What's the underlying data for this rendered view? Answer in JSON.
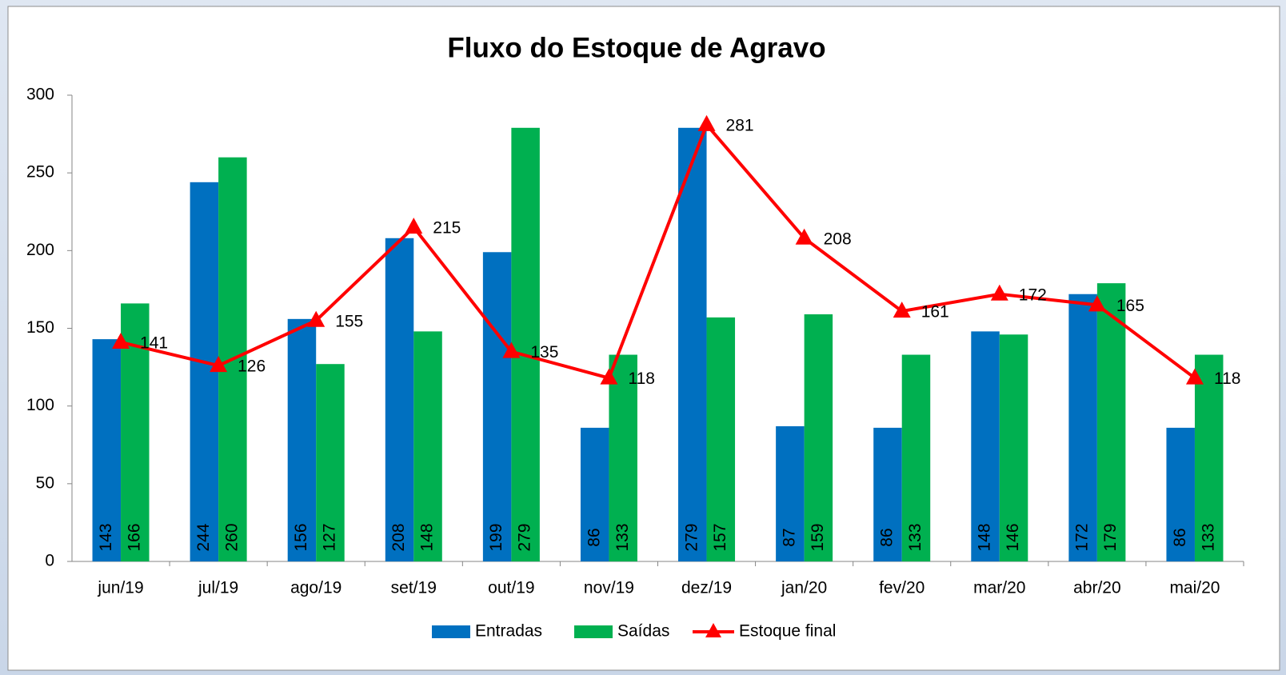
{
  "chart_data": {
    "type": "bar_line",
    "title": "Fluxo do Estoque de Agravo",
    "categories": [
      "jun/19",
      "jul/19",
      "ago/19",
      "set/19",
      "out/19",
      "nov/19",
      "dez/19",
      "jan/20",
      "fev/20",
      "mar/20",
      "abr/20",
      "mai/20"
    ],
    "series": [
      {
        "name": "Entradas",
        "type": "bar",
        "color": "#0070c0",
        "values": [
          143,
          244,
          156,
          208,
          199,
          86,
          279,
          87,
          86,
          148,
          172,
          86
        ]
      },
      {
        "name": "Saídas",
        "type": "bar",
        "color": "#00b050",
        "values": [
          166,
          260,
          127,
          148,
          279,
          133,
          157,
          159,
          133,
          146,
          179,
          133
        ]
      },
      {
        "name": "Estoque final",
        "type": "line",
        "color": "#ff0000",
        "values": [
          141,
          126,
          155,
          215,
          135,
          118,
          281,
          208,
          161,
          172,
          165,
          118
        ]
      }
    ],
    "ylim": [
      0,
      300
    ],
    "yticks": [
      0,
      50,
      100,
      150,
      200,
      250,
      300
    ],
    "grid": false,
    "legend": "bottom"
  }
}
